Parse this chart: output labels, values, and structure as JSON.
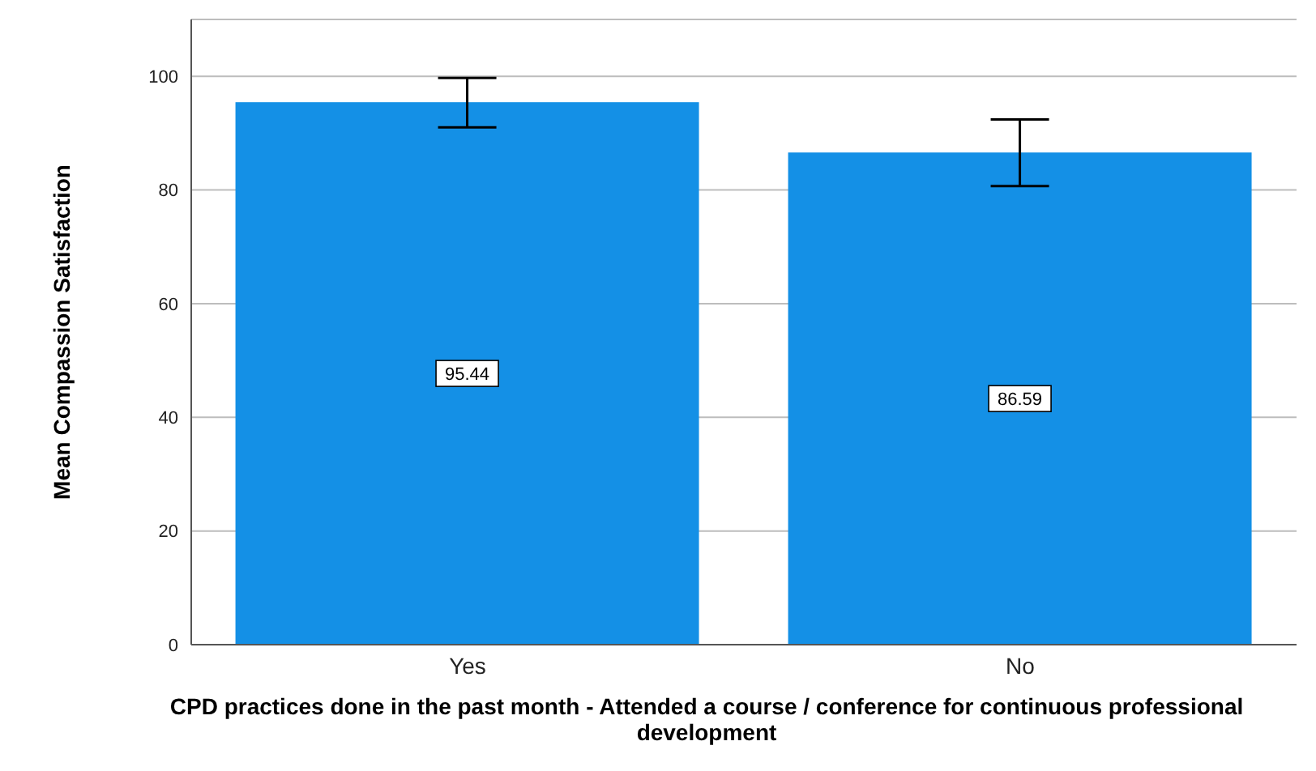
{
  "chart_data": {
    "type": "bar",
    "xlabel": "CPD practices done in the past month - Attended a course / conference for continuous professional development",
    "ylabel": "Mean Compassion Satisfaction",
    "categories": [
      "Yes",
      "No"
    ],
    "values": [
      95.44,
      86.59
    ],
    "errors": [
      [
        91.0,
        99.7
      ],
      [
        80.7,
        92.4
      ]
    ],
    "color": "#1490e6",
    "data_labels": true,
    "ylim": [
      0,
      110
    ],
    "yticks": [
      0,
      20,
      40,
      60,
      80,
      100
    ],
    "grid": "y"
  }
}
